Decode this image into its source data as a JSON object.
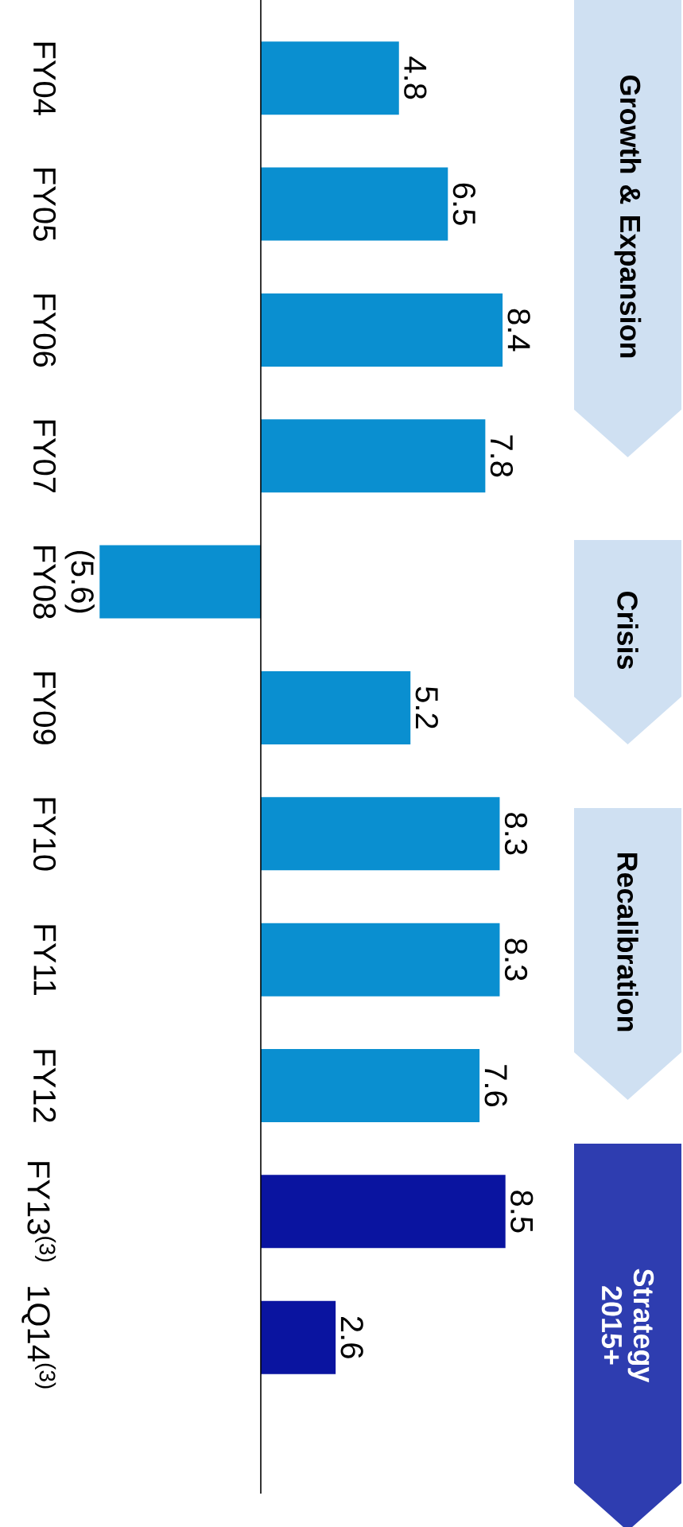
{
  "chart_data": {
    "type": "bar",
    "orientation": "horizontal",
    "categories": [
      "FY04",
      "FY05",
      "FY06",
      "FY07",
      "FY08",
      "FY09",
      "FY10",
      "FY11",
      "FY12",
      "FY13$^{(3)}$",
      "1Q14$^{(3)}$"
    ],
    "values": [
      4.8,
      6.5,
      8.4,
      7.8,
      -5.6,
      5.2,
      8.3,
      8.3,
      7.6,
      8.5,
      2.6
    ],
    "value_labels": [
      "4.8",
      "6.5",
      "8.4",
      "7.8",
      "(5.6)",
      "5.2",
      "8.3",
      "8.3",
      "7.6",
      "8.5",
      "2.6"
    ],
    "colors": [
      "#0a8fd0",
      "#0a8fd0",
      "#0a8fd0",
      "#0a8fd0",
      "#0a8fd0",
      "#0a8fd0",
      "#0a8fd0",
      "#0a8fd0",
      "#0a8fd0",
      "#0a14a0",
      "#0a14a0"
    ],
    "annotations": [
      "Growth & Expansion",
      "Crisis",
      "Recalibration",
      "Strategy 2015+"
    ]
  }
}
